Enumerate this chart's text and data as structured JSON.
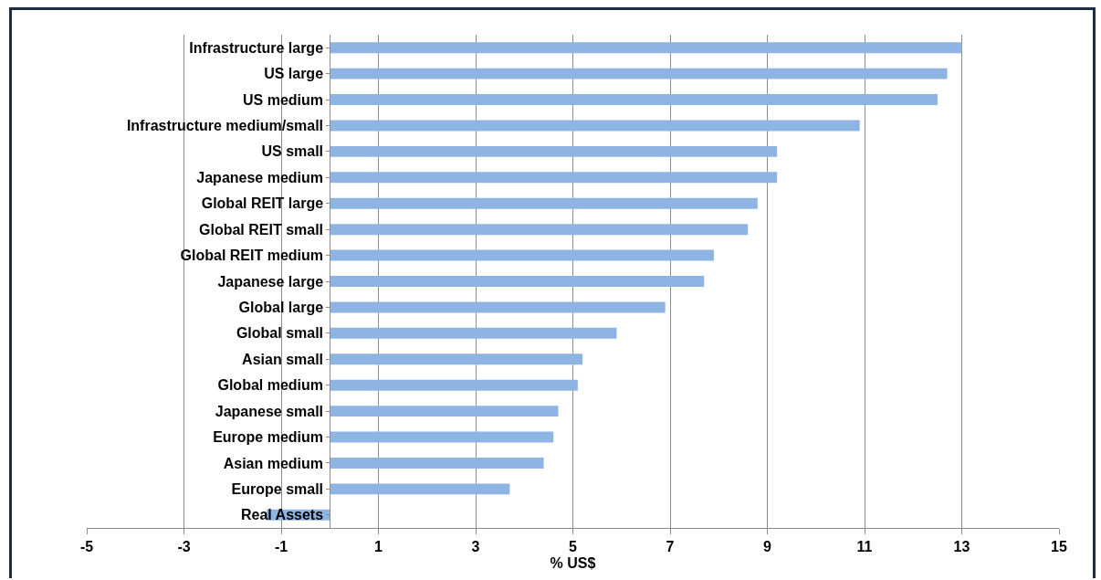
{
  "chart_data": {
    "type": "bar",
    "orientation": "horizontal",
    "xlabel": "% US$",
    "categories": [
      "Infrastructure large",
      "US large",
      "US medium",
      "Infrastructure medium/small",
      "US small",
      "Japanese medium",
      "Global REIT large",
      "Global REIT small",
      "Global REIT medium",
      "Japanese large",
      "Global large",
      "Global small",
      "Asian small",
      "Global medium",
      "Japanese small",
      "Europe medium",
      "Asian medium",
      "Europe small",
      "Real Assets"
    ],
    "values": [
      13.0,
      12.7,
      12.5,
      10.9,
      9.2,
      9.2,
      8.8,
      8.6,
      7.9,
      7.7,
      6.9,
      5.9,
      5.2,
      5.1,
      4.7,
      4.6,
      4.4,
      3.7,
      -1.3
    ],
    "color": "#8db4e2",
    "xlim": [
      -5,
      15
    ],
    "xticks": [
      -5,
      -3,
      -1,
      1,
      3,
      5,
      7,
      9,
      11,
      13,
      15
    ],
    "grid": "x"
  }
}
